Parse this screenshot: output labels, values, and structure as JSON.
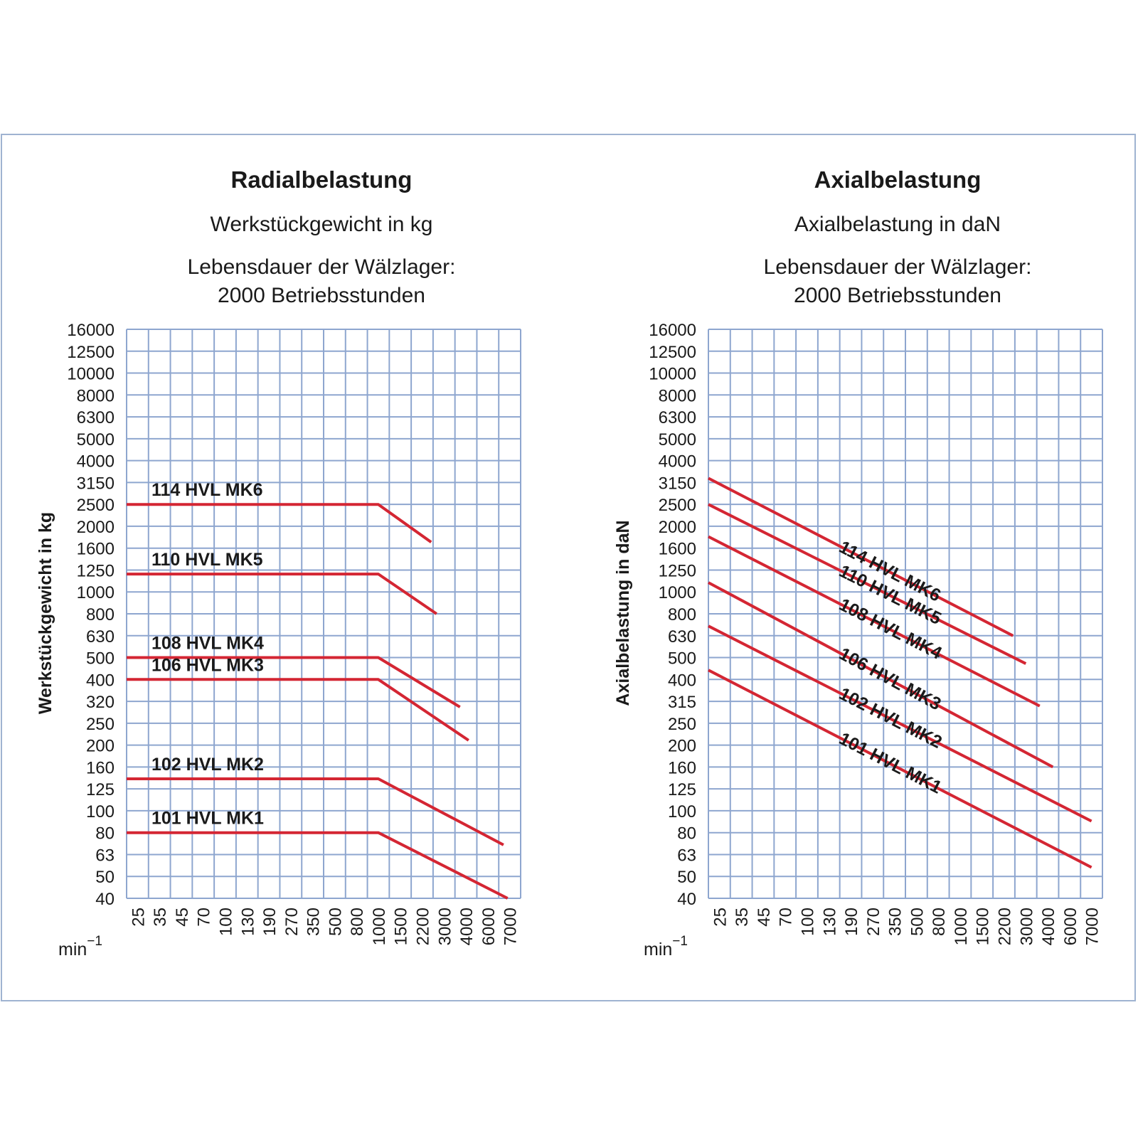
{
  "chart_data": [
    {
      "type": "line",
      "title": "Radialbelastung",
      "subtitle": "Werkstückgewicht in kg",
      "note_lines": [
        "Lebensdauer der Wälzlager:",
        "2000 Betriebsstunden"
      ],
      "ylabel": "Werkstückgewicht in kg",
      "xlabel": "min",
      "xlabel_sup": "−1",
      "x_ticks": [
        "25",
        "35",
        "45",
        "70",
        "100",
        "130",
        "190",
        "270",
        "350",
        "500",
        "800",
        "1000",
        "1500",
        "2200",
        "3000",
        "4000",
        "6000",
        "7000"
      ],
      "y_ticks": [
        "16000",
        "12500",
        "10000",
        "8000",
        "6300",
        "5000",
        "4000",
        "3150",
        "2500",
        "2000",
        "1600",
        "1250",
        "1000",
        "800",
        "630",
        "500",
        "400",
        "320",
        "250",
        "200",
        "160",
        "125",
        "100",
        "80",
        "63",
        "50",
        "40"
      ],
      "series": [
        {
          "name": "114 HVL MK6",
          "points": [
            [
              25,
              2500
            ],
            [
              1000,
              2500
            ],
            [
              2500,
              1700
            ]
          ]
        },
        {
          "name": "110 HVL MK5",
          "points": [
            [
              25,
              1200
            ],
            [
              1000,
              1200
            ],
            [
              2700,
              800
            ]
          ]
        },
        {
          "name": "108 HVL MK4",
          "points": [
            [
              25,
              500
            ],
            [
              1000,
              500
            ],
            [
              3700,
              300
            ]
          ]
        },
        {
          "name": "106 HVL MK3",
          "points": [
            [
              25,
              400
            ],
            [
              1000,
              400
            ],
            [
              4200,
              210
            ]
          ]
        },
        {
          "name": "102 HVL MK2",
          "points": [
            [
              25,
              140
            ],
            [
              1000,
              140
            ],
            [
              6700,
              70
            ]
          ]
        },
        {
          "name": "101 HVL MK1",
          "points": [
            [
              25,
              80
            ],
            [
              1000,
              80
            ],
            [
              6900,
              40
            ]
          ]
        }
      ]
    },
    {
      "type": "line",
      "title": "Axialbelastung",
      "subtitle": "Axialbelastung in daN",
      "note_lines": [
        "Lebensdauer der Wälzlager:",
        "2000 Betriebsstunden"
      ],
      "ylabel": "Axialbelastung in daN",
      "xlabel": "min",
      "xlabel_sup": "−1",
      "x_ticks": [
        "25",
        "35",
        "45",
        "70",
        "100",
        "130",
        "190",
        "270",
        "350",
        "500",
        "800",
        "1000",
        "1500",
        "2200",
        "3000",
        "4000",
        "6000",
        "7000"
      ],
      "y_ticks": [
        "16000",
        "12500",
        "10000",
        "8000",
        "6300",
        "5000",
        "4000",
        "3150",
        "2500",
        "2000",
        "1600",
        "1250",
        "1000",
        "800",
        "630",
        "500",
        "400",
        "315",
        "250",
        "200",
        "160",
        "125",
        "100",
        "80",
        "63",
        "50",
        "40"
      ],
      "series": [
        {
          "name": "114 HVL MK6",
          "points": [
            [
              25,
              3300
            ],
            [
              2500,
              630
            ]
          ]
        },
        {
          "name": "110 HVL MK5",
          "points": [
            [
              25,
              2500
            ],
            [
              3000,
              470
            ]
          ]
        },
        {
          "name": "108 HVL MK4",
          "points": [
            [
              25,
              1800
            ],
            [
              3600,
              300
            ]
          ]
        },
        {
          "name": "106 HVL MK3",
          "points": [
            [
              25,
              1100
            ],
            [
              4400,
              160
            ]
          ]
        },
        {
          "name": "102 HVL MK2",
          "points": [
            [
              25,
              700
            ],
            [
              7000,
              90
            ]
          ]
        },
        {
          "name": "101 HVL MK1",
          "points": [
            [
              25,
              440
            ],
            [
              7000,
              55
            ]
          ]
        }
      ]
    }
  ]
}
